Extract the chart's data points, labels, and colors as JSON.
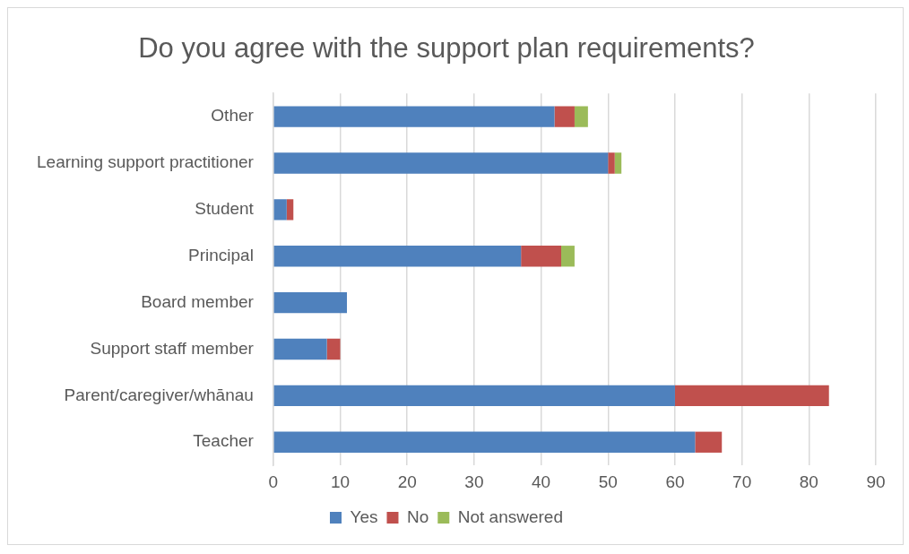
{
  "chart_data": {
    "type": "bar",
    "orientation": "horizontal",
    "stacked": true,
    "title": "Do you agree with the support plan requirements?",
    "categories": [
      "Other",
      "Learning support practitioner",
      "Student",
      "Principal",
      "Board member",
      "Support staff member",
      "Parent/caregiver/whānau",
      "Teacher"
    ],
    "series": [
      {
        "name": "Yes",
        "color": "#4f81bd",
        "values": [
          42,
          50,
          2,
          37,
          11,
          8,
          60,
          63
        ]
      },
      {
        "name": "No",
        "color": "#c0504d",
        "values": [
          3,
          1,
          1,
          6,
          0,
          2,
          23,
          4
        ]
      },
      {
        "name": "Not answered",
        "color": "#9bbb59",
        "values": [
          2,
          1,
          0,
          2,
          0,
          0,
          0,
          0
        ]
      }
    ],
    "xlim": [
      0,
      90
    ],
    "xticks": [
      0,
      10,
      20,
      30,
      40,
      50,
      60,
      70,
      80,
      90
    ],
    "grid": "x",
    "legend": "bottom"
  }
}
